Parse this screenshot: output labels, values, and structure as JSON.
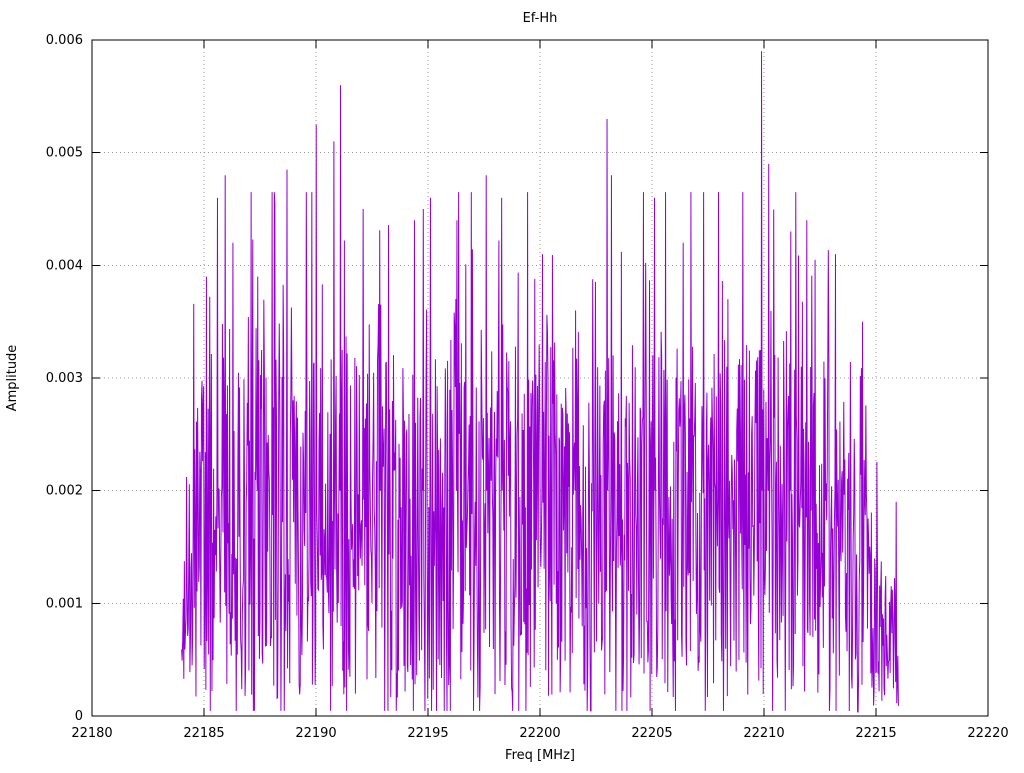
{
  "chart_data": {
    "type": "line",
    "title": "Ef-Hh",
    "xlabel": "Freq [MHz]",
    "ylabel": "Amplitude",
    "xlim": [
      22180,
      22220
    ],
    "ylim": [
      0,
      0.006
    ],
    "x_ticks": [
      22180,
      22185,
      22190,
      22195,
      22200,
      22205,
      22210,
      22215,
      22220
    ],
    "x_tick_labels": [
      "22180",
      "22185",
      "22190",
      "22195",
      "22200",
      "22205",
      "22210",
      "22215",
      "22220"
    ],
    "y_ticks": [
      0,
      0.001,
      0.002,
      0.003,
      0.004,
      0.005,
      0.006
    ],
    "y_tick_labels": [
      "0",
      "0.001",
      "0.002",
      "0.003",
      "0.004",
      "0.005",
      "0.006"
    ],
    "grid": true,
    "legend": "none",
    "line_color": "#9400d3",
    "background_color": "#ffffff",
    "data_x_range": [
      22184,
      22216
    ],
    "description": "Dense noise-like amplitude spectrum between 22184 and 22216 MHz; amplitudes mostly 0.0005-0.0035 with frequent spikes to 0.004-0.006, ramping up at the left edge and decaying after 22214.5",
    "noise": {
      "seed": 1337,
      "n_points": 1300,
      "x_start": 22184,
      "x_end": 22216,
      "y_floor": 0.00015,
      "y_range": 0.0031,
      "tail_prob": 0.28,
      "tail_scale": 0.00075,
      "dip_prob": 0.03,
      "y_cap": 0.00465,
      "envelope": [
        [
          22184,
          0.3
        ],
        [
          22184.4,
          0.8
        ],
        [
          22185,
          1
        ],
        [
          22213.8,
          1
        ],
        [
          22214.6,
          0.6
        ],
        [
          22215.3,
          0.45
        ],
        [
          22216,
          0.3
        ]
      ]
    },
    "peaks": [
      {
        "x": 22185.1,
        "y": 0.0039
      },
      {
        "x": 22185.6,
        "y": 0.0046
      },
      {
        "x": 22185.95,
        "y": 0.0048
      },
      {
        "x": 22186.3,
        "y": 0.0042
      },
      {
        "x": 22187.4,
        "y": 0.0039
      },
      {
        "x": 22188.7,
        "y": 0.00485
      },
      {
        "x": 22190.0,
        "y": 0.00525
      },
      {
        "x": 22190.8,
        "y": 0.0051
      },
      {
        "x": 22191.1,
        "y": 0.0056
      },
      {
        "x": 22192.1,
        "y": 0.0045
      },
      {
        "x": 22192.9,
        "y": 0.00365
      },
      {
        "x": 22194.4,
        "y": 0.0044
      },
      {
        "x": 22194.8,
        "y": 0.0045
      },
      {
        "x": 22195.1,
        "y": 0.0046
      },
      {
        "x": 22196.3,
        "y": 0.0044
      },
      {
        "x": 22197.6,
        "y": 0.0048
      },
      {
        "x": 22198.3,
        "y": 0.0046
      },
      {
        "x": 22200.1,
        "y": 0.0041
      },
      {
        "x": 22201.6,
        "y": 0.0036
      },
      {
        "x": 22203.0,
        "y": 0.0053
      },
      {
        "x": 22203.2,
        "y": 0.0048
      },
      {
        "x": 22205.1,
        "y": 0.0046
      },
      {
        "x": 22205.6,
        "y": 0.00465
      },
      {
        "x": 22206.4,
        "y": 0.0042
      },
      {
        "x": 22208.4,
        "y": 0.0037
      },
      {
        "x": 22209.9,
        "y": 0.0059
      },
      {
        "x": 22210.2,
        "y": 0.0049
      },
      {
        "x": 22211.2,
        "y": 0.0043
      },
      {
        "x": 22211.9,
        "y": 0.0044
      },
      {
        "x": 22213.2,
        "y": 0.0041
      },
      {
        "x": 22214.4,
        "y": 0.0035
      },
      {
        "x": 22215.9,
        "y": 0.0019
      }
    ]
  }
}
